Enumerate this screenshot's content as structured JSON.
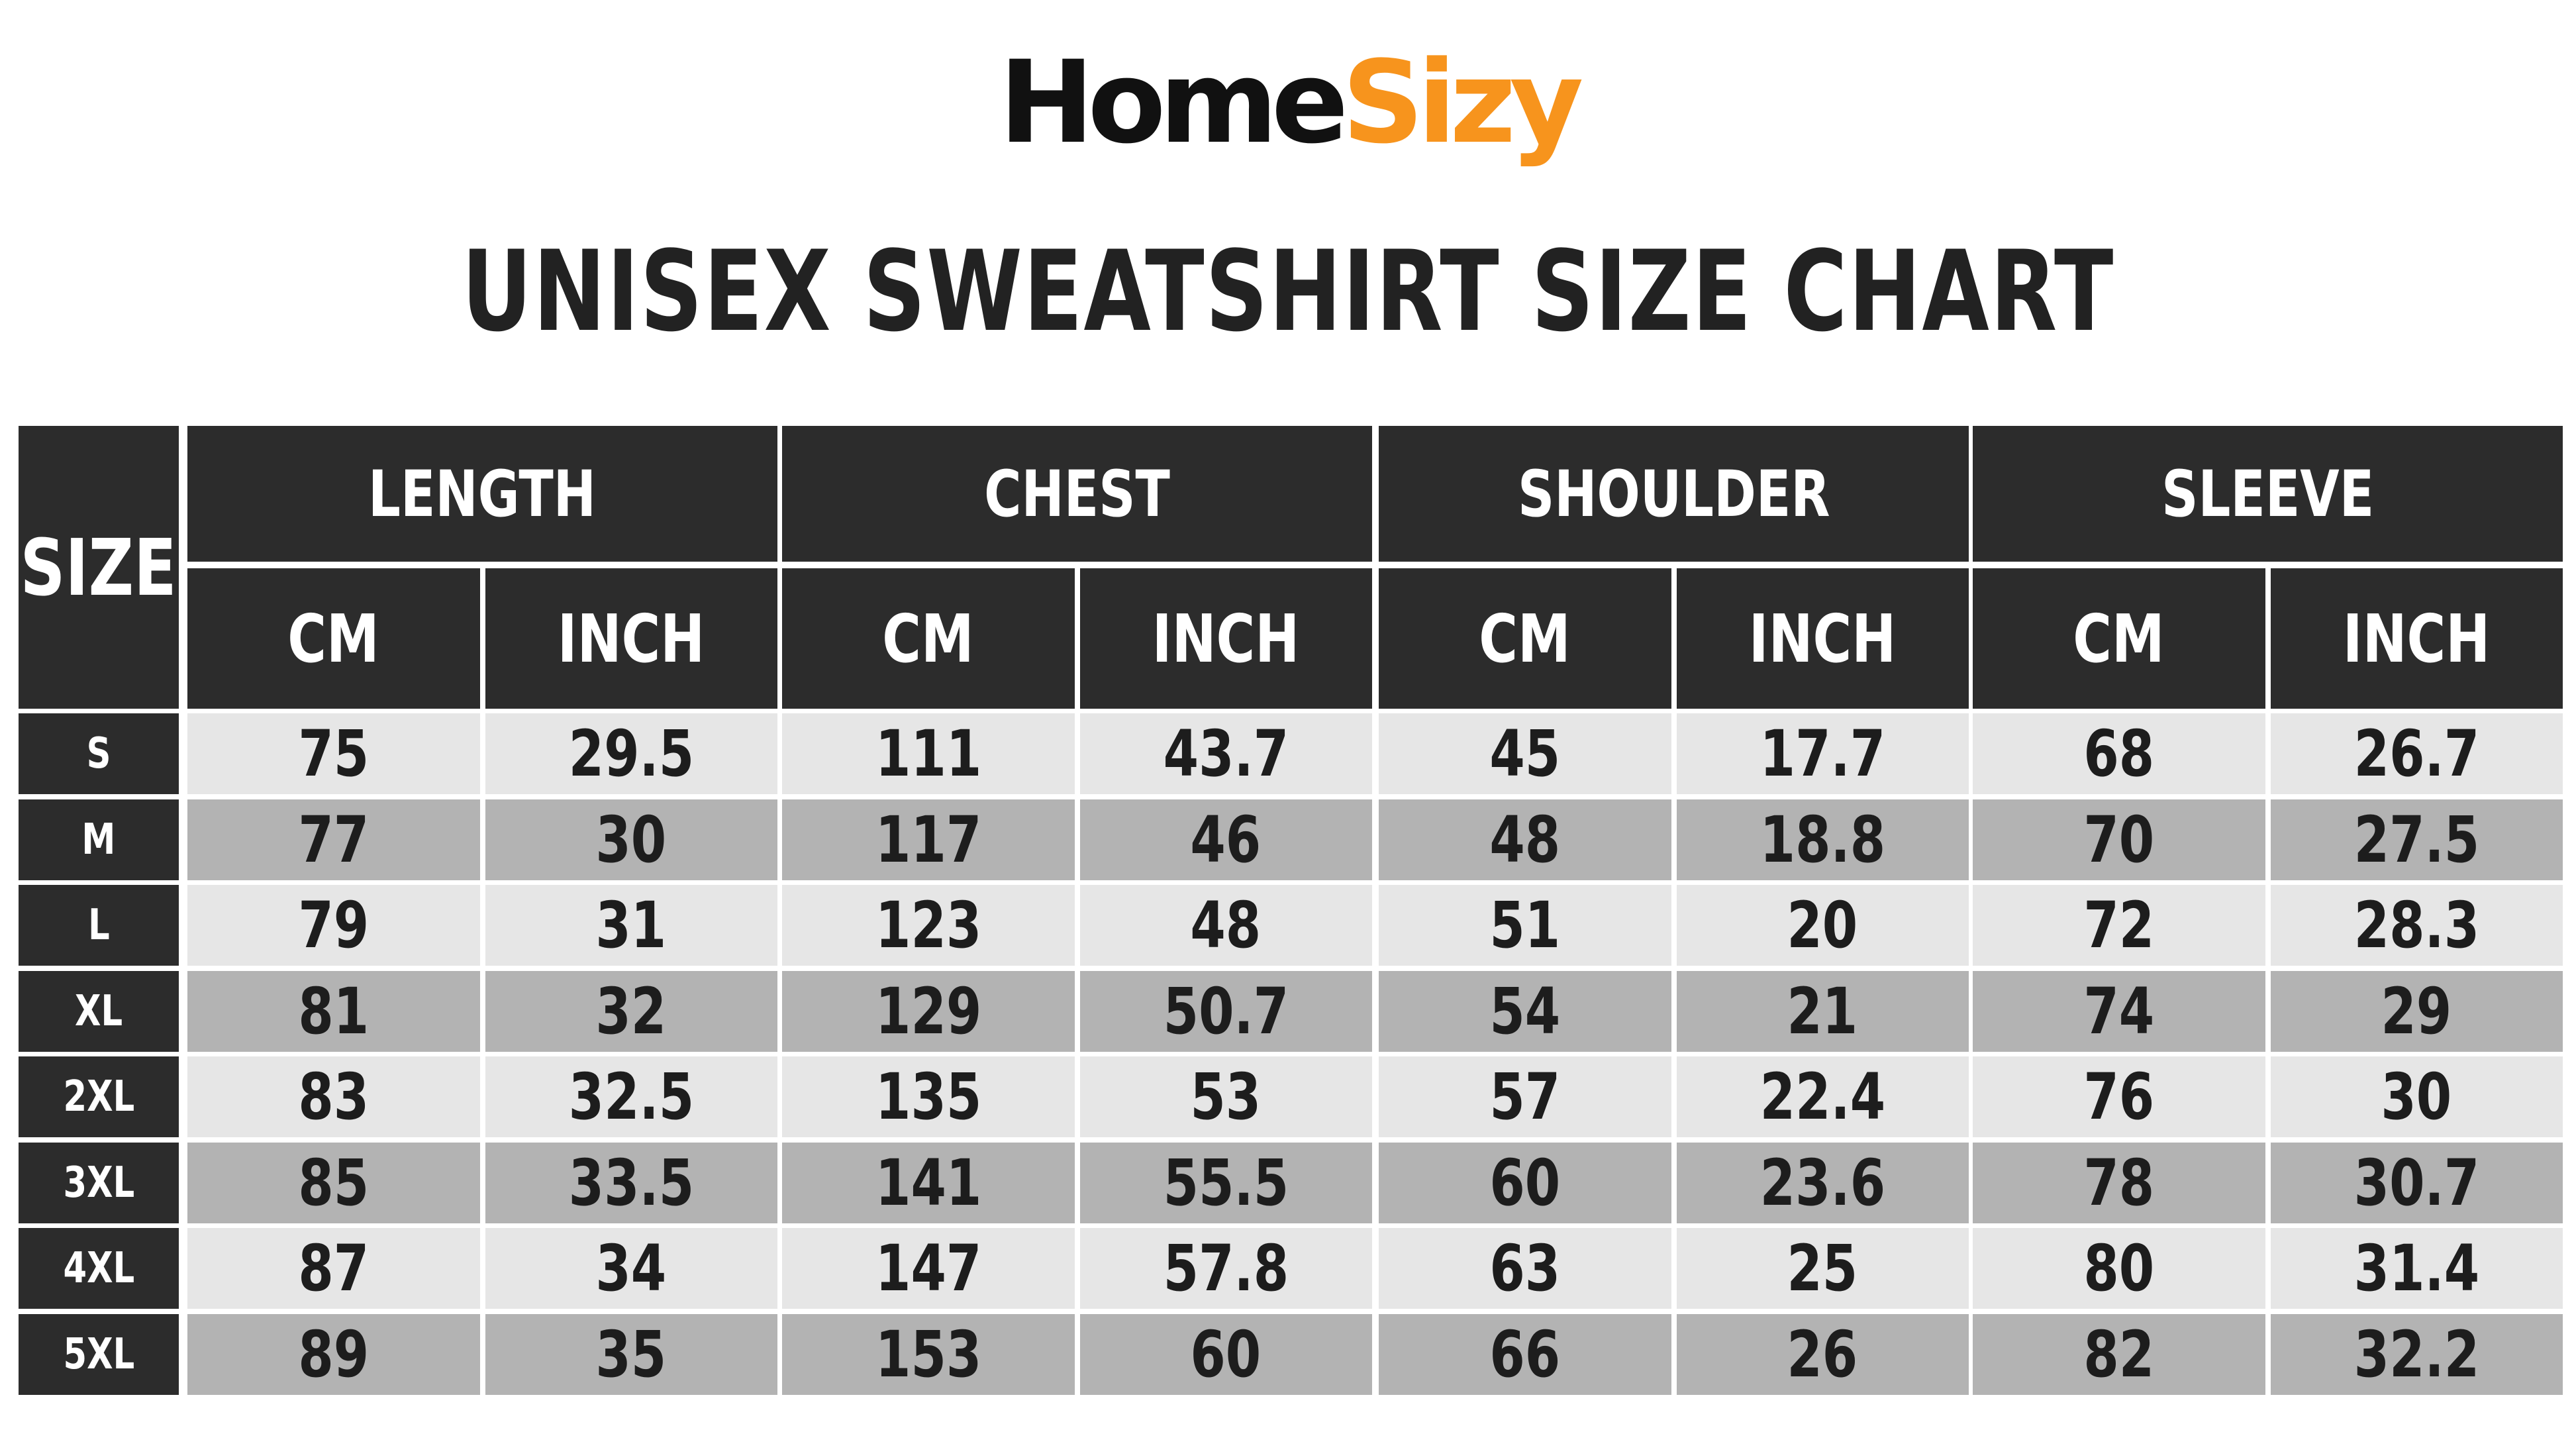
{
  "brand": {
    "part1": "Home",
    "part2": "Sizy",
    "colors": {
      "part1": "#111111",
      "part2": "#f7941d"
    }
  },
  "title": "UNISEX SWEATSHIRT SIZE CHART",
  "table": {
    "size_header": "SIZE",
    "groups": [
      "LENGTH",
      "CHEST",
      "SHOULDER",
      "SLEEVE"
    ],
    "units": [
      "CM",
      "INCH"
    ],
    "rows": [
      {
        "size": "S",
        "values": [
          "75",
          "29.5",
          "111",
          "43.7",
          "45",
          "17.7",
          "68",
          "26.7"
        ]
      },
      {
        "size": "M",
        "values": [
          "77",
          "30",
          "117",
          "46",
          "48",
          "18.8",
          "70",
          "27.5"
        ]
      },
      {
        "size": "L",
        "values": [
          "79",
          "31",
          "123",
          "48",
          "51",
          "20",
          "72",
          "28.3"
        ]
      },
      {
        "size": "XL",
        "values": [
          "81",
          "32",
          "129",
          "50.7",
          "54",
          "21",
          "74",
          "29"
        ]
      },
      {
        "size": "2XL",
        "values": [
          "83",
          "32.5",
          "135",
          "53",
          "57",
          "22.4",
          "76",
          "30"
        ]
      },
      {
        "size": "3XL",
        "values": [
          "85",
          "33.5",
          "141",
          "55.5",
          "60",
          "23.6",
          "78",
          "30.7"
        ]
      },
      {
        "size": "4XL",
        "values": [
          "87",
          "34",
          "147",
          "57.8",
          "63",
          "25",
          "80",
          "31.4"
        ]
      },
      {
        "size": "5XL",
        "values": [
          "89",
          "35",
          "153",
          "60",
          "66",
          "26",
          "82",
          "32.2"
        ]
      }
    ]
  },
  "colors": {
    "header_bg": "#2c2c2c",
    "row_light": "#e6e6e6",
    "row_dark": "#b3b3b3",
    "text_dark": "#1d1d1d"
  }
}
